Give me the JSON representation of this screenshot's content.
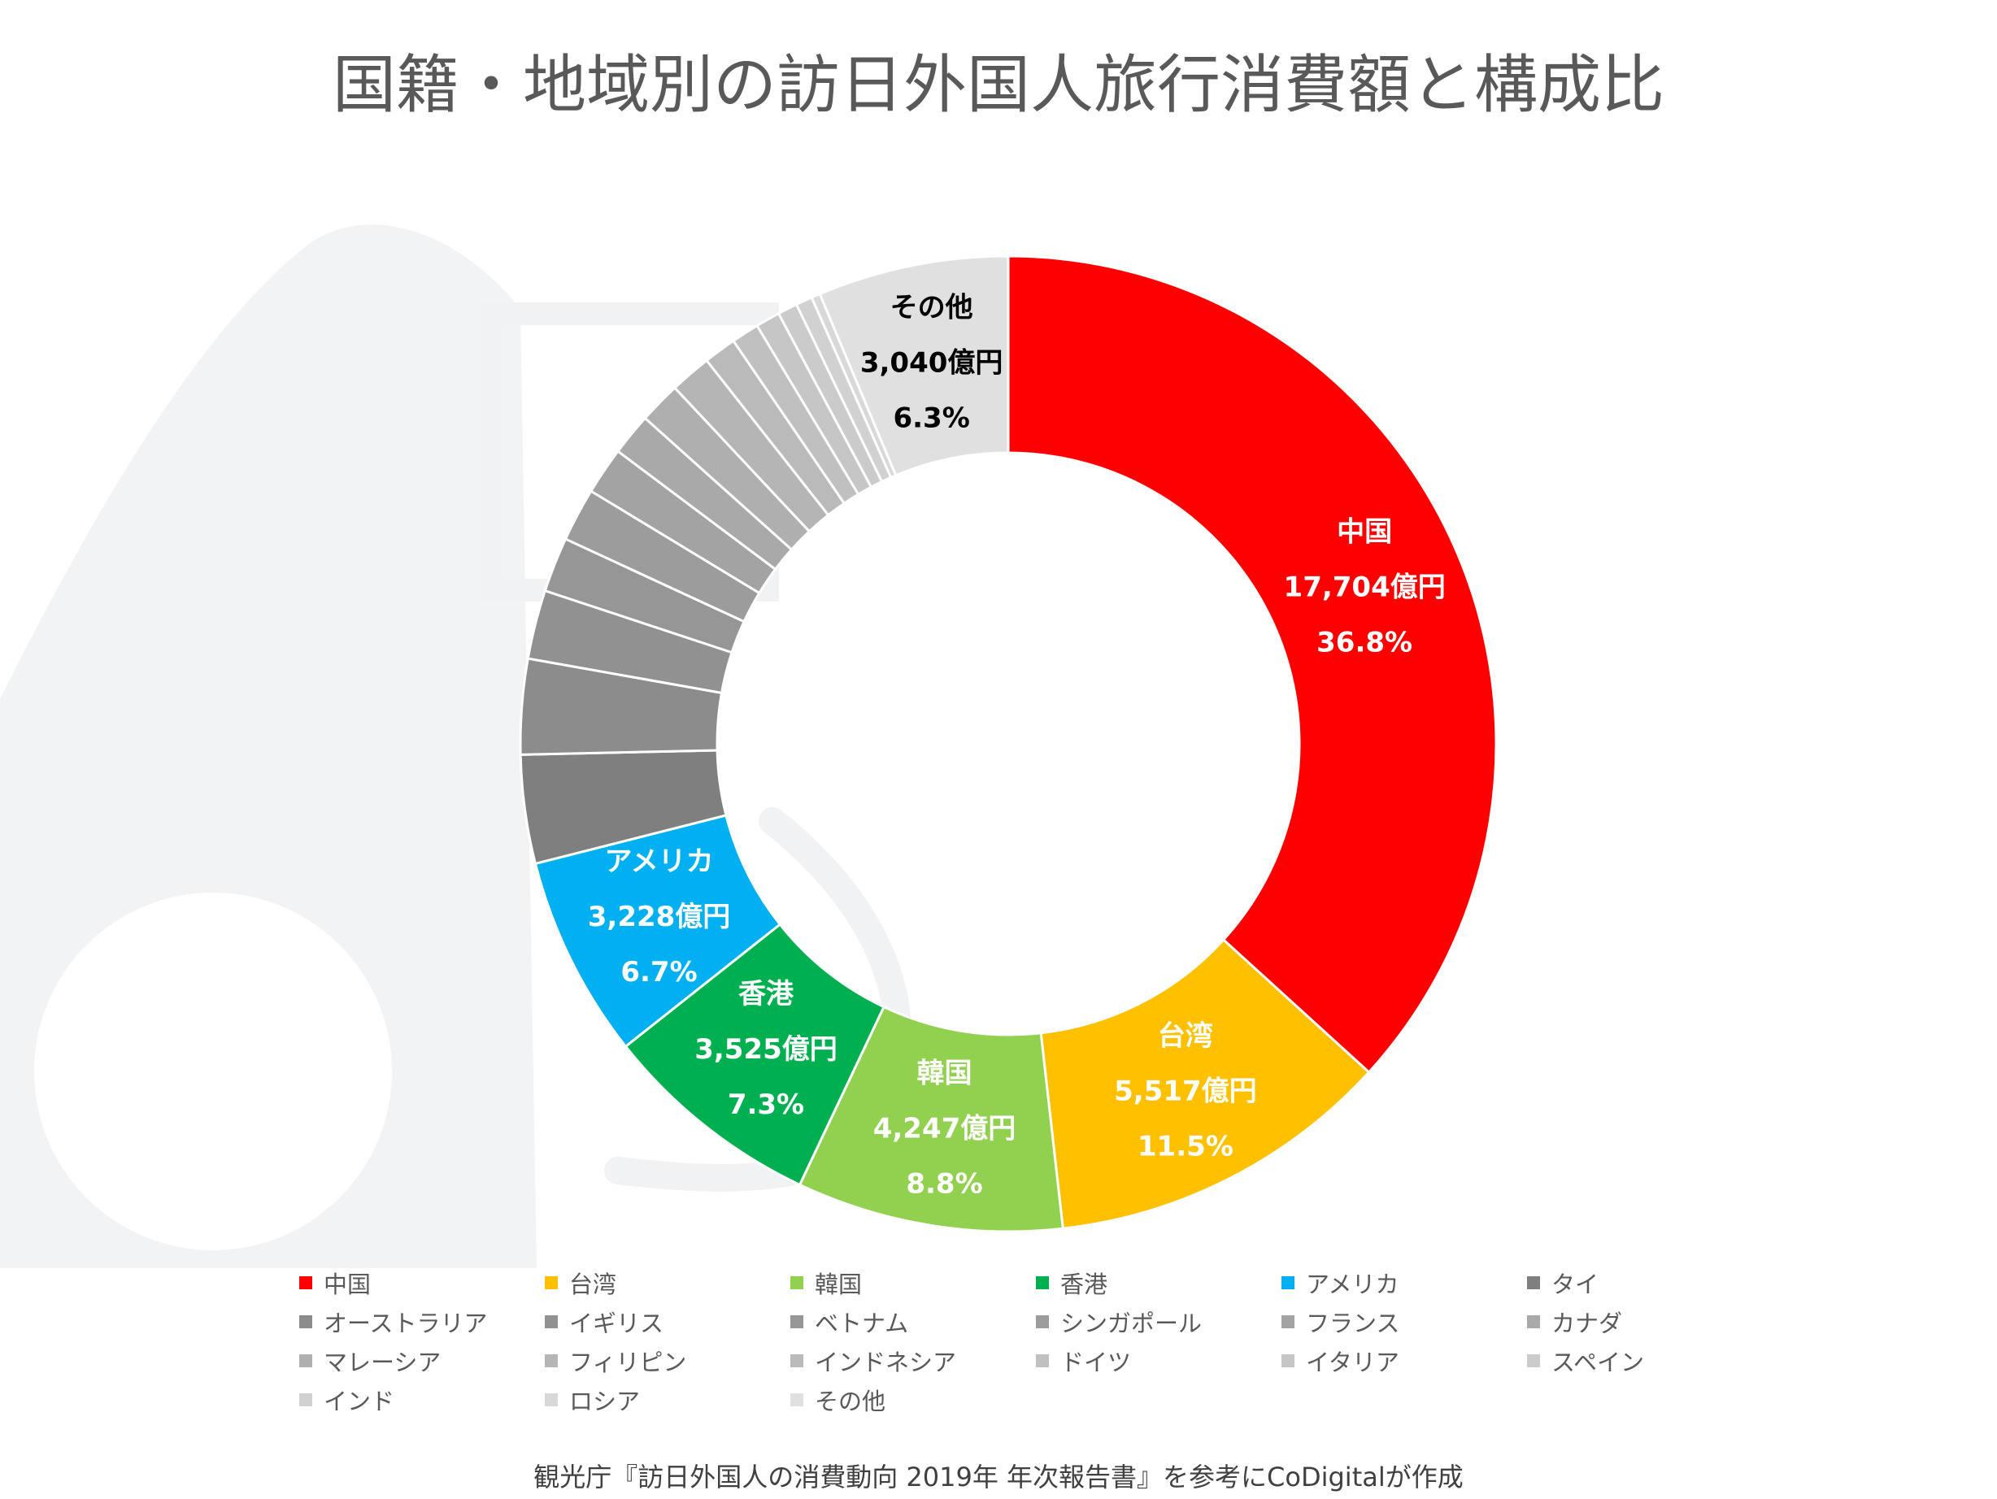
{
  "chart_data": {
    "type": "pie",
    "variant": "donut",
    "title": "国籍・地域別の訪日外国人旅行消費額と構成比",
    "unit": "億円",
    "legend_position": "bottom",
    "labels": [
      "中国",
      "台湾",
      "韓国",
      "香港",
      "アメリカ",
      "タイ",
      "オーストラリア",
      "イギリス",
      "ベトナム",
      "シンガポール",
      "フランス",
      "カナダ",
      "マレーシア",
      "フィリピン",
      "インドネシア",
      "ドイツ",
      "イタリア",
      "スペイン",
      "インド",
      "ロシア",
      "その他"
    ],
    "values": [
      17704,
      5517,
      4247,
      3525,
      3228,
      1732,
      1519,
      1099,
      875,
      853,
      756,
      673,
      668,
      660,
      521,
      442,
      388,
      315,
      263,
      140,
      3040
    ],
    "colors": [
      "#ff0000",
      "#ffc000",
      "#92d050",
      "#00b050",
      "#00b0f0",
      "#7f7f7f",
      "#8c8c8c",
      "#919191",
      "#969696",
      "#9c9c9c",
      "#a3a3a3",
      "#a9a9a9",
      "#afafaf",
      "#b5b5b5",
      "#bababa",
      "#c0c0c0",
      "#c6c6c6",
      "#cbcbcb",
      "#d1d1d1",
      "#d8d8d8",
      "#e0e0e0"
    ],
    "data_labels": [
      {
        "index": 0,
        "name": "中国",
        "value": "17,704億円",
        "percent": "36.8%",
        "color": "#ffffff"
      },
      {
        "index": 1,
        "name": "台湾",
        "value": "5,517億円",
        "percent": "11.5%",
        "color": "#ffffff"
      },
      {
        "index": 2,
        "name": "韓国",
        "value": "4,247億円",
        "percent": "8.8%",
        "color": "#ffffff"
      },
      {
        "index": 3,
        "name": "香港",
        "value": "3,525億円",
        "percent": "7.3%",
        "color": "#ffffff"
      },
      {
        "index": 4,
        "name": "アメリカ",
        "value": "3,228億円",
        "percent": "6.7%",
        "color": "#ffffff"
      },
      {
        "index": 20,
        "name": "その他",
        "value": "3,040億円",
        "percent": "6.3%",
        "color": "#000000"
      }
    ]
  },
  "source_note": "観光庁『訪日外国人の消費動向 2019年 年次報告書』を参考にCoDigitalが作成"
}
